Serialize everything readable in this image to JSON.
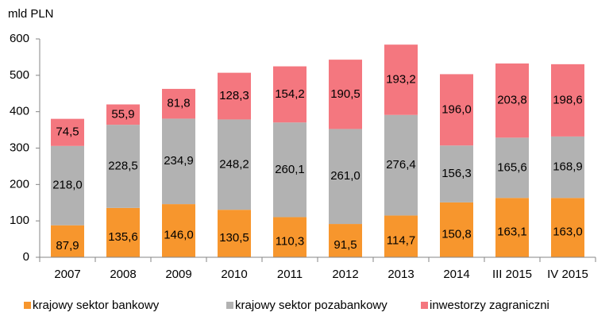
{
  "chart_data": {
    "type": "stacked_bar",
    "y_axis_label": "mld PLN",
    "categories": [
      "2007",
      "2008",
      "2009",
      "2010",
      "2011",
      "2012",
      "2013",
      "2014",
      "III 2015",
      "IV 2015"
    ],
    "series": [
      {
        "name": "krajowy sektor bankowy",
        "color": "#f7962d",
        "values": [
          87.9,
          135.6,
          146.0,
          130.5,
          110.3,
          91.5,
          114.7,
          150.8,
          163.1,
          163.0
        ],
        "value_labels": [
          "87,9",
          "135,6",
          "146,0",
          "130,5",
          "110,3",
          "91,5",
          "114,7",
          "150,8",
          "163,1",
          "163,0"
        ]
      },
      {
        "name": "krajowy sektor pozabankowy",
        "color": "#b2b2b2",
        "values": [
          218.0,
          228.5,
          234.9,
          248.2,
          260.1,
          261.0,
          276.4,
          156.3,
          165.6,
          168.9
        ],
        "value_labels": [
          "218,0",
          "228,5",
          "234,9",
          "248,2",
          "260,1",
          "261,0",
          "276,4",
          "156,3",
          "165,6",
          "168,9"
        ]
      },
      {
        "name": "inwestorzy zagraniczni",
        "color": "#f4777f",
        "values": [
          74.5,
          55.9,
          81.8,
          128.3,
          154.2,
          190.5,
          193.2,
          196.0,
          203.8,
          198.6
        ],
        "value_labels": [
          "74,5",
          "55,9",
          "81,8",
          "128,3",
          "154,2",
          "190,5",
          "193,2",
          "196,0",
          "203,8",
          "198,6"
        ]
      }
    ],
    "ylim": [
      0,
      600
    ],
    "yticks": [
      0,
      100,
      200,
      300,
      400,
      500,
      600
    ],
    "grid": false,
    "legend_position": "bottom"
  }
}
